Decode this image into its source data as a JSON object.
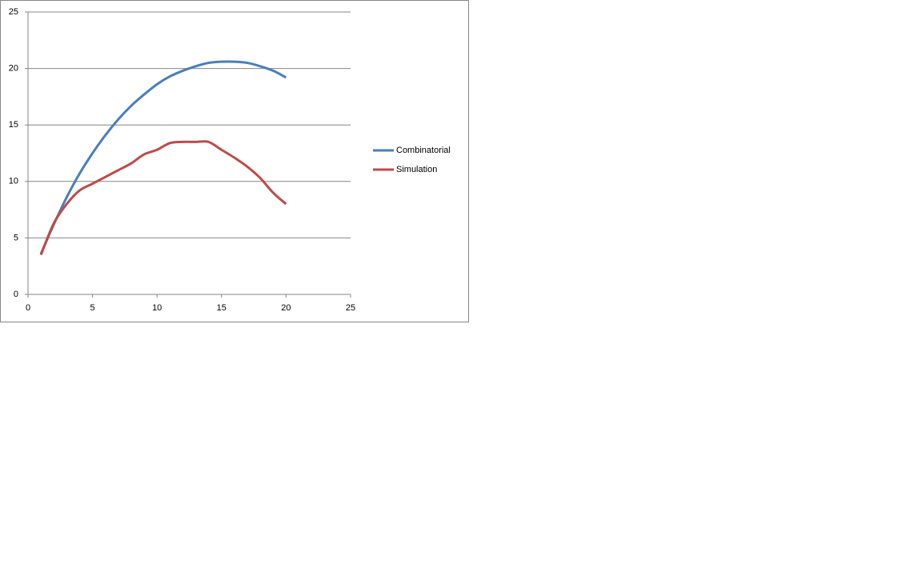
{
  "chart_data": {
    "type": "line",
    "x": [
      1,
      2,
      3,
      4,
      5,
      6,
      7,
      8,
      9,
      10,
      11,
      12,
      13,
      14,
      15,
      16,
      17,
      18,
      19,
      20
    ],
    "series": [
      {
        "name": "Combinatorial",
        "color": "#4a7ebb",
        "values": [
          3.6,
          6.2,
          8.6,
          10.7,
          12.5,
          14.1,
          15.5,
          16.7,
          17.7,
          18.6,
          19.3,
          19.8,
          20.2,
          20.5,
          20.6,
          20.6,
          20.5,
          20.2,
          19.8,
          19.2
        ]
      },
      {
        "name": "Simulation",
        "color": "#be4b48",
        "values": [
          3.5,
          6.3,
          8.0,
          9.2,
          9.8,
          10.4,
          11.0,
          11.6,
          12.4,
          12.8,
          13.4,
          13.5,
          13.5,
          13.5,
          12.8,
          12.1,
          11.3,
          10.3,
          9.0,
          8.0
        ]
      }
    ],
    "xlim": [
      0,
      25
    ],
    "xticks": [
      0,
      5,
      10,
      15,
      20,
      25
    ],
    "ylim": [
      0,
      25
    ],
    "yticks": [
      0,
      5,
      10,
      15,
      20,
      25
    ],
    "grid": true,
    "smooth": true,
    "legend": "right"
  }
}
